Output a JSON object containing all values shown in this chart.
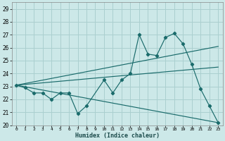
{
  "title": "",
  "xlabel": "Humidex (Indice chaleur)",
  "ylabel": "",
  "bg_color": "#cce8e8",
  "grid_color": "#aacfcf",
  "line_color": "#1a6b6b",
  "xlim": [
    -0.5,
    23.5
  ],
  "ylim": [
    20,
    29.5
  ],
  "yticks": [
    20,
    21,
    22,
    23,
    24,
    25,
    26,
    27,
    28,
    29
  ],
  "xticks": [
    0,
    1,
    2,
    3,
    4,
    5,
    6,
    7,
    8,
    9,
    10,
    11,
    12,
    13,
    14,
    15,
    16,
    17,
    18,
    19,
    20,
    21,
    22,
    23
  ],
  "line1_x": [
    0,
    1,
    2,
    3,
    4,
    5,
    6,
    7,
    8,
    10,
    11,
    12,
    13,
    14,
    15,
    16,
    17,
    18,
    19,
    20,
    21,
    22,
    23
  ],
  "line1_y": [
    23.1,
    22.9,
    22.5,
    22.5,
    22.0,
    22.5,
    22.5,
    20.9,
    21.5,
    23.5,
    22.5,
    23.5,
    24.0,
    27.0,
    25.5,
    25.4,
    26.8,
    27.1,
    26.3,
    24.7,
    22.8,
    21.5,
    20.2
  ],
  "line2_x": [
    0,
    23
  ],
  "line2_y": [
    23.1,
    26.1
  ],
  "line3_x": [
    0,
    23
  ],
  "line3_y": [
    23.1,
    24.5
  ],
  "line4_x": [
    0,
    23
  ],
  "line4_y": [
    23.1,
    20.2
  ]
}
